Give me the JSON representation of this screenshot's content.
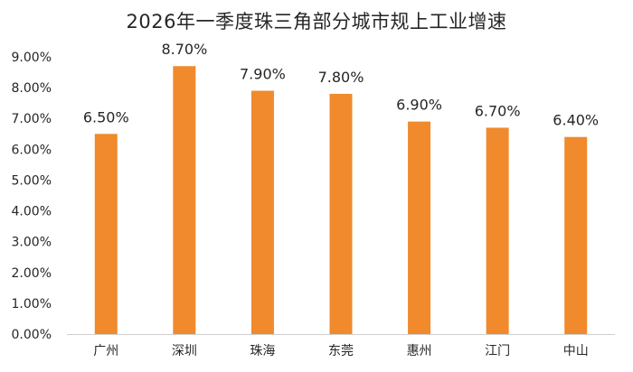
{
  "chart_data": {
    "type": "bar",
    "title": "2026年一季度珠三角部分城市规上工业增速",
    "xlabel": "",
    "ylabel": "",
    "categories": [
      "广州",
      "深圳",
      "珠海",
      "东莞",
      "惠州",
      "江门",
      "中山"
    ],
    "values": [
      6.5,
      8.7,
      7.9,
      7.8,
      6.9,
      6.7,
      6.4
    ],
    "data_labels": [
      "6.50%",
      "8.70%",
      "7.90%",
      "7.80%",
      "6.90%",
      "6.70%",
      "6.40%"
    ],
    "yticks": [
      "0.00%",
      "1.00%",
      "2.00%",
      "3.00%",
      "4.00%",
      "5.00%",
      "6.00%",
      "7.00%",
      "8.00%",
      "9.00%"
    ],
    "ylim": [
      0,
      9
    ],
    "grid": false,
    "legend": "none",
    "bar_color": "#F08A2C"
  }
}
